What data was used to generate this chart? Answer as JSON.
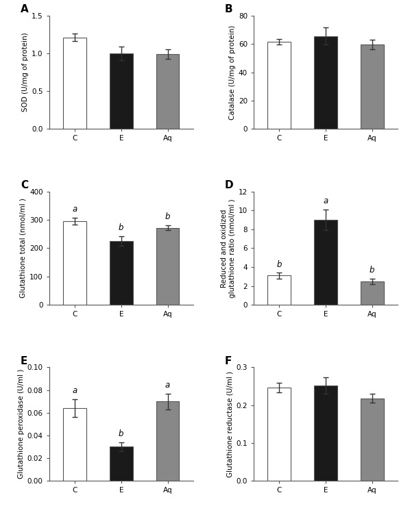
{
  "panels": [
    {
      "label": "A",
      "ylabel": "SOD (U/mg of protein)",
      "categories": [
        "C",
        "E",
        "Aq"
      ],
      "values": [
        1.21,
        1.0,
        0.99
      ],
      "errors": [
        0.05,
        0.09,
        0.06
      ],
      "ylim": [
        0,
        1.5
      ],
      "yticks": [
        0.0,
        0.5,
        1.0,
        1.5
      ],
      "ytick_labels": [
        "0.0",
        "0.5",
        "1.0",
        "1.5"
      ],
      "sig_labels": [
        "",
        "",
        ""
      ],
      "bar_colors": [
        "white",
        "#1a1a1a",
        "#888888"
      ]
    },
    {
      "label": "B",
      "ylabel": "Catalase (U/mg of protein)",
      "categories": [
        "C",
        "E",
        "Aq"
      ],
      "values": [
        61.5,
        65.5,
        59.5
      ],
      "errors": [
        2.0,
        6.0,
        3.5
      ],
      "ylim": [
        0,
        80
      ],
      "yticks": [
        0,
        20,
        40,
        60,
        80
      ],
      "ytick_labels": [
        "0",
        "20",
        "40",
        "60",
        "80"
      ],
      "sig_labels": [
        "",
        "",
        ""
      ],
      "bar_colors": [
        "white",
        "#1a1a1a",
        "#888888"
      ]
    },
    {
      "label": "C",
      "ylabel": "Glutathione total (nmol/ml )",
      "categories": [
        "C",
        "E",
        "Aq"
      ],
      "values": [
        295,
        225,
        272
      ],
      "errors": [
        12,
        18,
        8
      ],
      "ylim": [
        0,
        400
      ],
      "yticks": [
        0,
        100,
        200,
        300,
        400
      ],
      "ytick_labels": [
        "0",
        "100",
        "200",
        "300",
        "400"
      ],
      "sig_labels": [
        "a",
        "b",
        "b"
      ],
      "bar_colors": [
        "white",
        "#1a1a1a",
        "#888888"
      ]
    },
    {
      "label": "D",
      "ylabel": "Reduced and oxidized\nglutathione ratio (nmol/ml )",
      "categories": [
        "C",
        "E",
        "Aq"
      ],
      "values": [
        3.1,
        9.0,
        2.5
      ],
      "errors": [
        0.3,
        1.1,
        0.3
      ],
      "ylim": [
        0,
        12
      ],
      "yticks": [
        0,
        2,
        4,
        6,
        8,
        10,
        12
      ],
      "ytick_labels": [
        "0",
        "2",
        "4",
        "6",
        "8",
        "10",
        "12"
      ],
      "sig_labels": [
        "b",
        "a",
        "b"
      ],
      "bar_colors": [
        "white",
        "#1a1a1a",
        "#888888"
      ]
    },
    {
      "label": "E",
      "ylabel": "Glutathione peroxidase (U/ml )",
      "categories": [
        "C",
        "E",
        "Aq"
      ],
      "values": [
        0.064,
        0.03,
        0.07
      ],
      "errors": [
        0.008,
        0.004,
        0.007
      ],
      "ylim": [
        0,
        0.1
      ],
      "yticks": [
        0.0,
        0.02,
        0.04,
        0.06,
        0.08,
        0.1
      ],
      "ytick_labels": [
        "0.00",
        "0.02",
        "0.04",
        "0.06",
        "0.08",
        "0.10"
      ],
      "sig_labels": [
        "a",
        "b",
        "a"
      ],
      "bar_colors": [
        "white",
        "#1a1a1a",
        "#888888"
      ]
    },
    {
      "label": "F",
      "ylabel": "Glutathione reductase (U/ml )",
      "categories": [
        "C",
        "E",
        "Aq"
      ],
      "values": [
        0.247,
        0.252,
        0.218
      ],
      "errors": [
        0.013,
        0.022,
        0.012
      ],
      "ylim": [
        0,
        0.3
      ],
      "yticks": [
        0.0,
        0.1,
        0.2,
        0.3
      ],
      "ytick_labels": [
        "0.0",
        "0.1",
        "0.2",
        "0.3"
      ],
      "sig_labels": [
        "",
        "",
        ""
      ],
      "bar_colors": [
        "white",
        "#1a1a1a",
        "#888888"
      ]
    }
  ],
  "bar_width": 0.5,
  "tick_fontsize": 7.5,
  "label_fontsize": 7.5,
  "panel_label_fontsize": 11,
  "sig_fontsize": 8.5,
  "edge_color": "#555555",
  "background_color": "#ffffff"
}
